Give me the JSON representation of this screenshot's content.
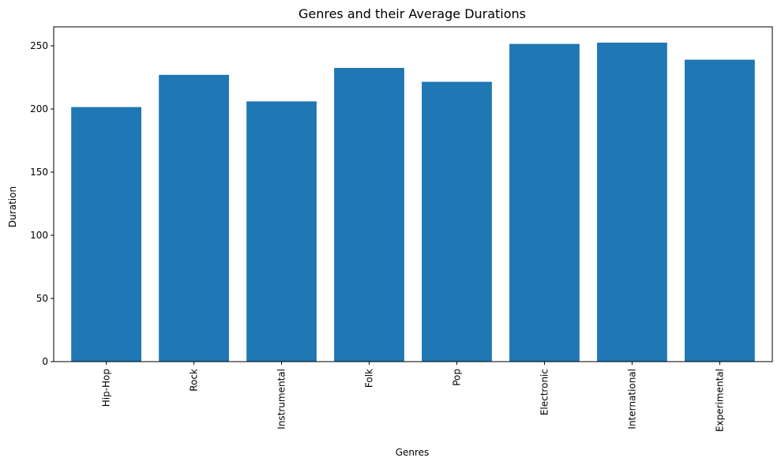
{
  "chart_data": {
    "type": "bar",
    "title": "Genres and their Average Durations",
    "xlabel": "Genres",
    "ylabel": "Duration",
    "categories": [
      "Hip-Hop",
      "Rock",
      "Instrumental",
      "Folk",
      "Pop",
      "Electronic",
      "International",
      "Experimental"
    ],
    "values": [
      201.5,
      227,
      206,
      232.5,
      221.5,
      251.5,
      252.5,
      239
    ],
    "ylim": [
      0,
      265
    ],
    "yticks": [
      0,
      50,
      100,
      150,
      200,
      250
    ],
    "grid": false,
    "legend": "none",
    "bar_color": "#1f77b4",
    "xtick_rotation": "vertical"
  }
}
